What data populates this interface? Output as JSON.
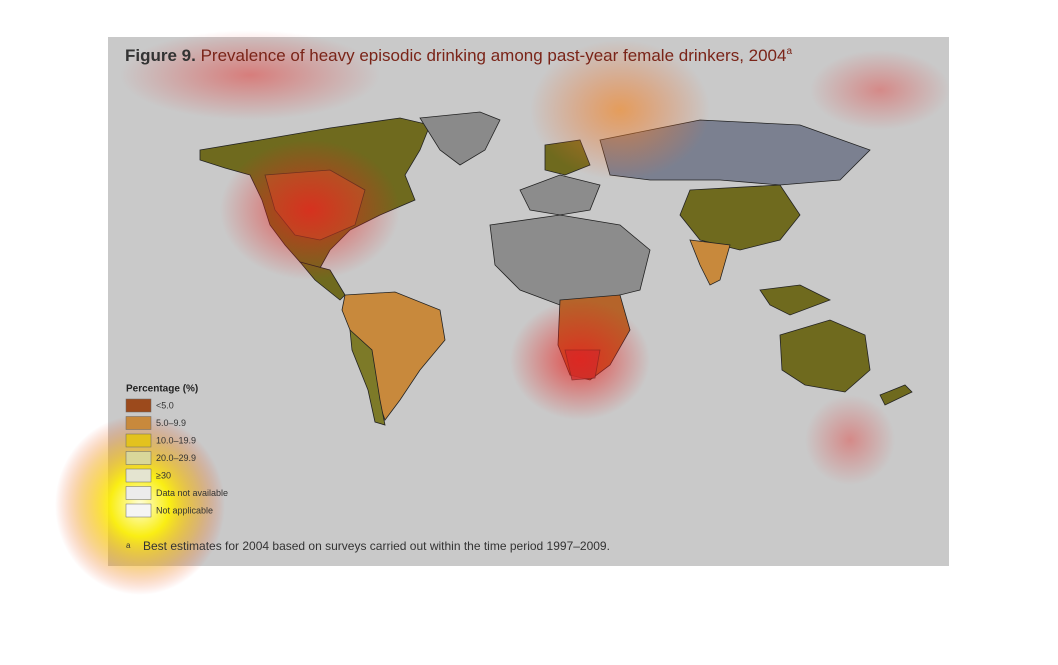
{
  "title": {
    "label": "Figure 9.",
    "text": "Prevalence of heavy episodic drinking among past-year female drinkers, 2004",
    "superscript": "a"
  },
  "legend": {
    "title": "Percentage (%)",
    "items": [
      {
        "label": "<5.0",
        "color": "#9c4a1c"
      },
      {
        "label": "5.0–9.9",
        "color": "#c8893c"
      },
      {
        "label": "10.0–19.9",
        "color": "#e3c21e"
      },
      {
        "label": "20.0–29.9",
        "color": "#d9d79a"
      },
      {
        "label": "≥30",
        "color": "#e4e4d0"
      },
      {
        "label": "Data not available",
        "color": "#ececec"
      },
      {
        "label": "Not applicable",
        "color": "#f5f5f5"
      }
    ]
  },
  "footnote": {
    "marker": "a",
    "text": "Best estimates for 2004 based on surveys carried out within the time period 1997–2009."
  }
}
